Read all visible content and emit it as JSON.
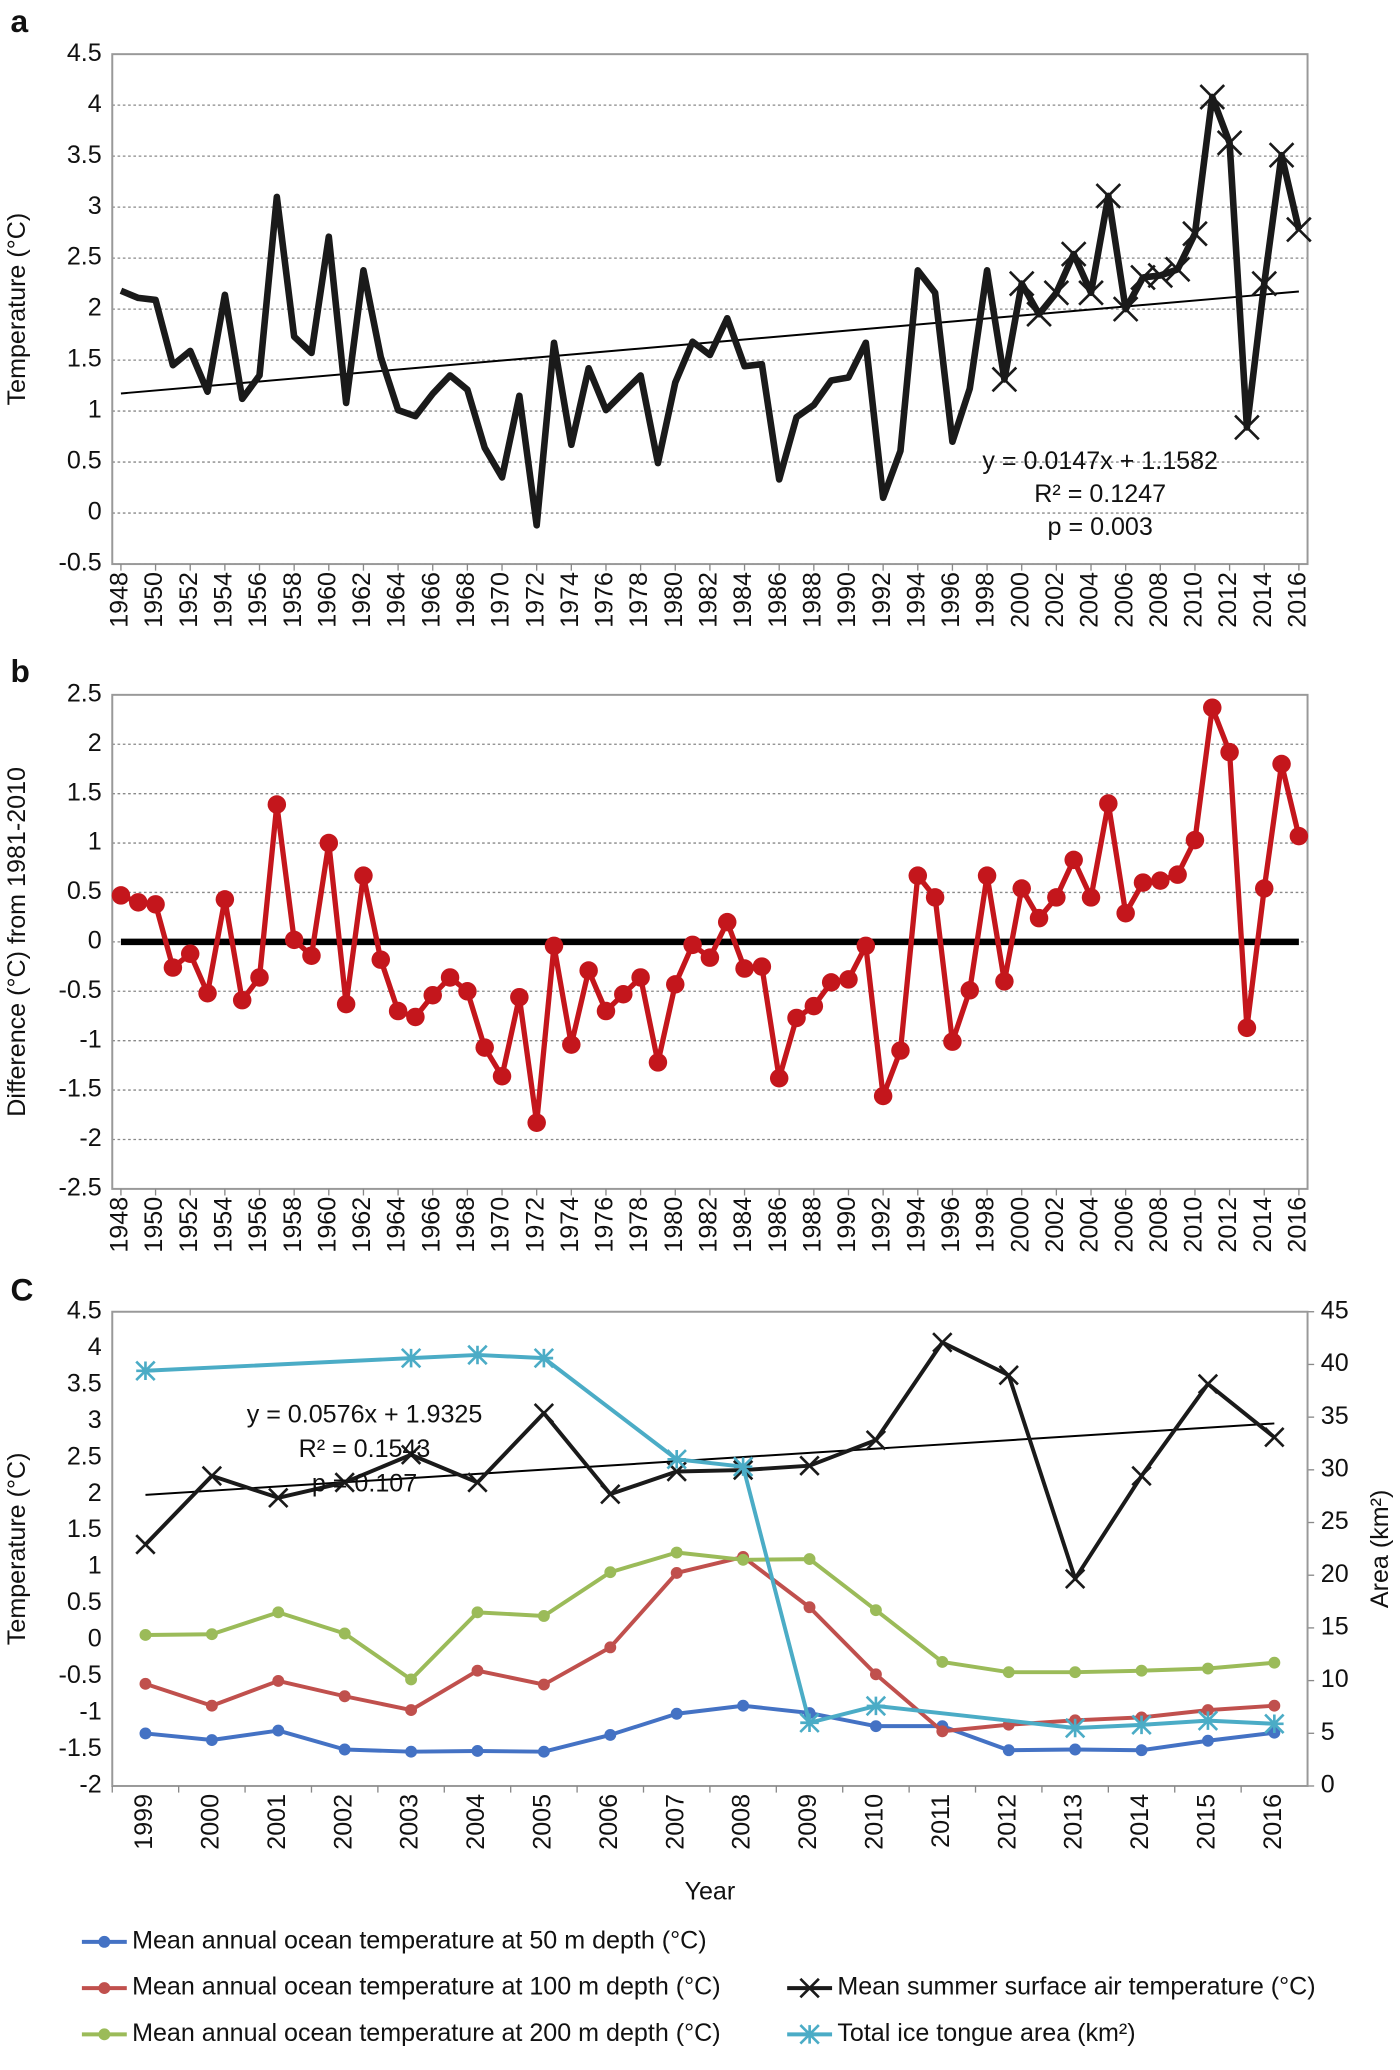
{
  "chart_data": [
    {
      "type": "line",
      "panel_label": "a",
      "ylabel": "Temperature (°C)",
      "x": [
        1948,
        1949,
        1950,
        1951,
        1952,
        1953,
        1954,
        1955,
        1956,
        1957,
        1958,
        1959,
        1960,
        1961,
        1962,
        1963,
        1964,
        1965,
        1966,
        1967,
        1968,
        1969,
        1970,
        1971,
        1972,
        1973,
        1974,
        1975,
        1976,
        1977,
        1978,
        1979,
        1980,
        1981,
        1982,
        1983,
        1984,
        1985,
        1986,
        1987,
        1988,
        1989,
        1990,
        1991,
        1992,
        1993,
        1994,
        1995,
        1996,
        1997,
        1998,
        1999,
        2000,
        2001,
        2002,
        2003,
        2004,
        2005,
        2006,
        2007,
        2008,
        2009,
        2010,
        2011,
        2012,
        2013,
        2014,
        2015,
        2016
      ],
      "xlim": [
        1947.5,
        2016.5
      ],
      "xticks": [
        1948,
        1950,
        1952,
        1954,
        1956,
        1958,
        1960,
        1962,
        1964,
        1966,
        1968,
        1970,
        1972,
        1974,
        1976,
        1978,
        1980,
        1982,
        1984,
        1986,
        1988,
        1990,
        1992,
        1994,
        1996,
        1998,
        2000,
        2002,
        2004,
        2006,
        2008,
        2010,
        2012,
        2014,
        2016
      ],
      "ylim": [
        -0.5,
        4.5
      ],
      "yticks": [
        -0.5,
        0,
        0.5,
        1,
        1.5,
        2,
        2.5,
        3,
        3.5,
        4,
        4.5
      ],
      "grid": true,
      "series": [
        {
          "color": "#1a1a1a",
          "marker": "x",
          "marked_from": 1999,
          "values": [
            2.18,
            2.11,
            2.09,
            1.45,
            1.59,
            1.19,
            2.14,
            1.12,
            1.35,
            3.1,
            1.73,
            1.57,
            2.71,
            1.08,
            2.38,
            1.53,
            1.01,
            0.95,
            1.17,
            1.35,
            1.21,
            0.64,
            0.35,
            1.15,
            -0.12,
            1.67,
            0.67,
            1.42,
            1.01,
            1.18,
            1.35,
            0.49,
            1.28,
            1.68,
            1.55,
            1.91,
            1.44,
            1.46,
            0.33,
            0.94,
            1.06,
            1.3,
            1.33,
            1.67,
            0.15,
            0.61,
            2.38,
            2.16,
            0.7,
            1.22,
            2.38,
            1.31,
            2.25,
            1.95,
            2.16,
            2.54,
            2.16,
            3.11,
            2.0,
            2.31,
            2.33,
            2.39,
            2.74,
            4.08,
            3.63,
            0.84,
            2.25,
            3.51,
            2.78
          ]
        }
      ],
      "trend": {
        "slope": 0.0147,
        "intercept": 1.1582
      },
      "annotations": [
        "y = 0.0147x + 1.1582",
        "R² = 0.1247",
        "p = 0.003"
      ]
    },
    {
      "type": "line",
      "panel_label": "b",
      "ylabel": "Difference (°C) from 1981-2010",
      "x": [
        1948,
        1949,
        1950,
        1951,
        1952,
        1953,
        1954,
        1955,
        1956,
        1957,
        1958,
        1959,
        1960,
        1961,
        1962,
        1963,
        1964,
        1965,
        1966,
        1967,
        1968,
        1969,
        1970,
        1971,
        1972,
        1973,
        1974,
        1975,
        1976,
        1977,
        1978,
        1979,
        1980,
        1981,
        1982,
        1983,
        1984,
        1985,
        1986,
        1987,
        1988,
        1989,
        1990,
        1991,
        1992,
        1993,
        1994,
        1995,
        1996,
        1997,
        1998,
        1999,
        2000,
        2001,
        2002,
        2003,
        2004,
        2005,
        2006,
        2007,
        2008,
        2009,
        2010,
        2011,
        2012,
        2013,
        2014,
        2015,
        2016
      ],
      "xlim": [
        1947.5,
        2016.5
      ],
      "xticks": [
        1948,
        1950,
        1952,
        1954,
        1956,
        1958,
        1960,
        1962,
        1964,
        1966,
        1968,
        1970,
        1972,
        1974,
        1976,
        1978,
        1980,
        1982,
        1984,
        1986,
        1988,
        1990,
        1992,
        1994,
        1996,
        1998,
        2000,
        2002,
        2004,
        2006,
        2008,
        2010,
        2012,
        2014,
        2016
      ],
      "ylim": [
        -2.5,
        2.5
      ],
      "yticks": [
        -2.5,
        -2,
        -1.5,
        -1,
        -0.5,
        0,
        0.5,
        1,
        1.5,
        2,
        2.5
      ],
      "grid": true,
      "reference_line": 0,
      "series": [
        {
          "color": "#c4161c",
          "marker": "circle",
          "values": [
            0.47,
            0.4,
            0.38,
            -0.26,
            -0.12,
            -0.52,
            0.43,
            -0.59,
            -0.36,
            1.39,
            0.02,
            -0.14,
            1.0,
            -0.63,
            0.67,
            -0.18,
            -0.7,
            -0.76,
            -0.54,
            -0.36,
            -0.5,
            -1.07,
            -1.36,
            -0.56,
            -1.83,
            -0.04,
            -1.04,
            -0.29,
            -0.7,
            -0.53,
            -0.36,
            -1.22,
            -0.43,
            -0.03,
            -0.16,
            0.2,
            -0.27,
            -0.25,
            -1.38,
            -0.77,
            -0.65,
            -0.41,
            -0.38,
            -0.04,
            -1.56,
            -1.1,
            0.67,
            0.45,
            -1.01,
            -0.49,
            0.67,
            -0.4,
            0.54,
            0.24,
            0.45,
            0.83,
            0.45,
            1.4,
            0.29,
            0.6,
            0.62,
            0.68,
            1.03,
            2.37,
            1.92,
            -0.87,
            0.54,
            1.8,
            1.07
          ]
        }
      ]
    },
    {
      "type": "combo",
      "panel_label": "C",
      "ylabel": "Temperature (°C)",
      "y2label": "Area (km²)",
      "xlabel": "Year",
      "categories": [
        "1999",
        "2000",
        "2001",
        "2002",
        "2003",
        "2004",
        "2005",
        "2006",
        "2007",
        "2008",
        "2009",
        "2010",
        "2011",
        "2012",
        "2013",
        "2014",
        "2015",
        "2016"
      ],
      "ylim": [
        -2,
        4.5
      ],
      "yticks": [
        -2,
        -1.5,
        -1,
        -0.5,
        0,
        0.5,
        1,
        1.5,
        2,
        2.5,
        3,
        3.5,
        4,
        4.5
      ],
      "y2lim": [
        0,
        45
      ],
      "y2ticks": [
        0,
        5,
        10,
        15,
        20,
        25,
        30,
        35,
        40,
        45
      ],
      "series": [
        {
          "name": "Mean annual ocean temperature at 50 m depth (°C)",
          "color": "#4472c4",
          "marker": "circle",
          "values": [
            -1.28,
            -1.37,
            -1.24,
            -1.5,
            -1.53,
            -1.52,
            -1.53,
            -1.3,
            -1.01,
            -0.9,
            -1.0,
            -1.18,
            -1.18,
            -1.51,
            -1.5,
            -1.51,
            -1.38,
            -1.27
          ]
        },
        {
          "name": "Mean annual ocean temperature at 100 m depth (°C)",
          "color": "#c0504d",
          "marker": "circle",
          "values": [
            -0.6,
            -0.9,
            -0.56,
            -0.77,
            -0.96,
            -0.42,
            -0.61,
            -0.1,
            0.92,
            1.14,
            0.45,
            -0.47,
            -1.25,
            -1.16,
            -1.1,
            -1.06,
            -0.96,
            -0.9
          ]
        },
        {
          "name": "Mean annual ocean temperature at 200 m depth (°C)",
          "color": "#9bbb59",
          "marker": "circle",
          "values": [
            0.07,
            0.08,
            0.38,
            0.09,
            -0.54,
            0.38,
            0.33,
            0.93,
            1.2,
            1.1,
            1.11,
            0.41,
            -0.3,
            -0.44,
            -0.44,
            -0.42,
            -0.39,
            -0.31
          ]
        },
        {
          "name": "Mean summer surface air temperature (°C)",
          "color": "#1a1a1a",
          "marker": "x",
          "values": [
            1.31,
            2.25,
            1.95,
            2.16,
            2.54,
            2.16,
            3.11,
            2.0,
            2.31,
            2.33,
            2.39,
            2.74,
            4.08,
            3.63,
            0.84,
            2.25,
            3.51,
            2.78
          ]
        },
        {
          "name": "Total ice tongue area (km²)",
          "color": "#4bacc6",
          "marker": "asterisk",
          "axis": "y2",
          "x": [
            "1999",
            "2003",
            "2004",
            "2005",
            "2007",
            "2008",
            "2009",
            "2010",
            "2013",
            "2014",
            "2015",
            "2016"
          ],
          "values": [
            39.4,
            40.6,
            40.9,
            40.6,
            31.0,
            30.3,
            6.0,
            7.6,
            5.5,
            5.8,
            6.2,
            5.9
          ]
        }
      ],
      "trend": {
        "slope": 0.0576,
        "intercept": 1.9325
      },
      "annotations": [
        "y = 0.0576x + 1.9325",
        "R² = 0.1543",
        "p = 0.107"
      ]
    }
  ]
}
